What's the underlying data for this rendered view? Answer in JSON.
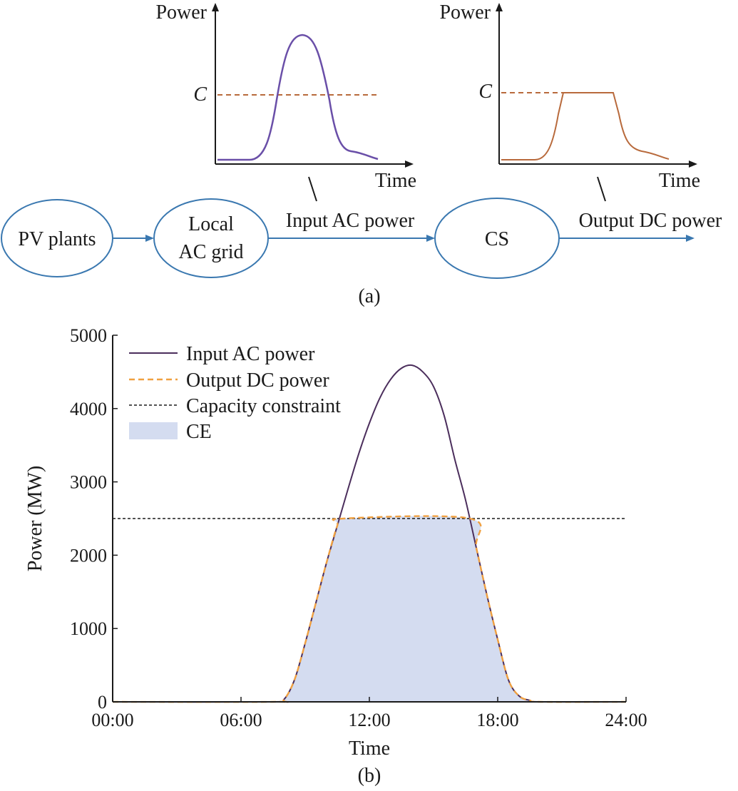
{
  "panel_a": {
    "caption": "(a)",
    "nodes": [
      "PV plants",
      "Local",
      "AC grid",
      "CS"
    ],
    "edge_labels": [
      "Input AC power",
      "Output DC power"
    ],
    "inset_left": {
      "y_label": "Power",
      "x_label": "Time",
      "c_label": "C"
    },
    "inset_right": {
      "y_label": "Power",
      "x_label": "Time",
      "c_label": "C"
    },
    "colors": {
      "arrow": "#3a78b0",
      "input_curve": "#6a4fa8",
      "output_curve": "#b86a3c",
      "c_dash": "#b86a3c"
    }
  },
  "chart_data": {
    "type": "line",
    "caption": "(b)",
    "xlabel": "Time",
    "ylabel": "Power (MW)",
    "xlim": [
      0,
      24
    ],
    "ylim": [
      0,
      5000
    ],
    "x_ticks": [
      0,
      6,
      12,
      18,
      24
    ],
    "x_tick_labels": [
      "00:00",
      "06:00",
      "12:00",
      "18:00",
      "24:00"
    ],
    "y_ticks": [
      0,
      1000,
      2000,
      3000,
      4000,
      5000
    ],
    "y_tick_labels": [
      "0",
      "1000",
      "2000",
      "3000",
      "4000",
      "5000"
    ],
    "legend": {
      "position": "top-left",
      "entries": [
        "Input AC power",
        "Output DC power",
        "Capacity constraint",
        "CE"
      ]
    },
    "capacity_constraint": 2500,
    "series": [
      {
        "name": "Input AC power",
        "color": "#4b2e5c",
        "style": "solid",
        "x": [
          0,
          7.5,
          8.0,
          8.5,
          9.0,
          9.5,
          10.0,
          10.5,
          11.0,
          11.5,
          12.0,
          12.5,
          13.0,
          13.5,
          14.0,
          14.5,
          15.0,
          15.5,
          16.0,
          16.5,
          17.0,
          17.5,
          18.0,
          18.5,
          19.0,
          19.5,
          20.0,
          24
        ],
        "y": [
          0,
          0,
          30,
          300,
          800,
          1350,
          1900,
          2400,
          2900,
          3380,
          3800,
          4150,
          4400,
          4550,
          4590,
          4500,
          4300,
          3900,
          3300,
          2750,
          2100,
          1450,
          850,
          300,
          80,
          20,
          0,
          0
        ]
      },
      {
        "name": "Output DC power",
        "color": "#f0a040",
        "style": "dashed",
        "x": [
          0,
          7.5,
          8.0,
          8.5,
          9.0,
          9.5,
          10.0,
          10.5,
          10.8,
          16.7,
          17.0,
          17.5,
          18.0,
          18.5,
          19.0,
          19.5,
          20.0,
          24
        ],
        "y": [
          0,
          0,
          30,
          300,
          800,
          1350,
          1900,
          2400,
          2500,
          2500,
          2100,
          1450,
          850,
          300,
          80,
          20,
          0,
          0
        ]
      }
    ],
    "ce_fill_color": "#d4dcf0"
  }
}
